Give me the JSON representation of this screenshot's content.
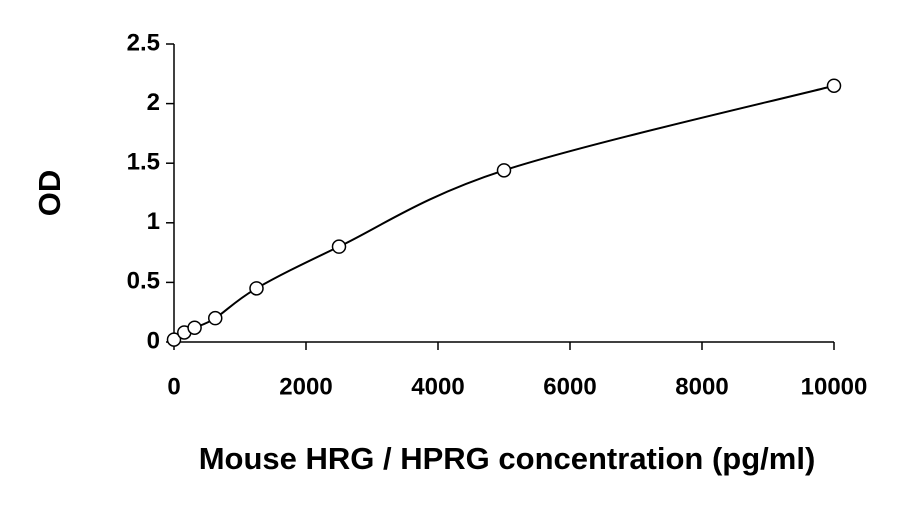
{
  "chart_data": {
    "type": "scatter",
    "x_label": "Mouse HRG / HPRG concentration (pg/ml)",
    "y_label": "OD",
    "x": [
      0,
      156,
      312,
      625,
      1250,
      2500,
      5000,
      10000
    ],
    "values": [
      0.02,
      0.08,
      0.12,
      0.2,
      0.45,
      0.8,
      1.44,
      2.15
    ],
    "color": "#000000",
    "trendline": true,
    "xlim": [
      0,
      10000
    ],
    "xticks": [
      0,
      2000,
      4000,
      6000,
      8000,
      10000
    ],
    "ylim": [
      0,
      2.5
    ],
    "yticks": [
      0,
      0.5,
      1,
      1.5,
      2,
      2.5
    ],
    "grid": false
  }
}
